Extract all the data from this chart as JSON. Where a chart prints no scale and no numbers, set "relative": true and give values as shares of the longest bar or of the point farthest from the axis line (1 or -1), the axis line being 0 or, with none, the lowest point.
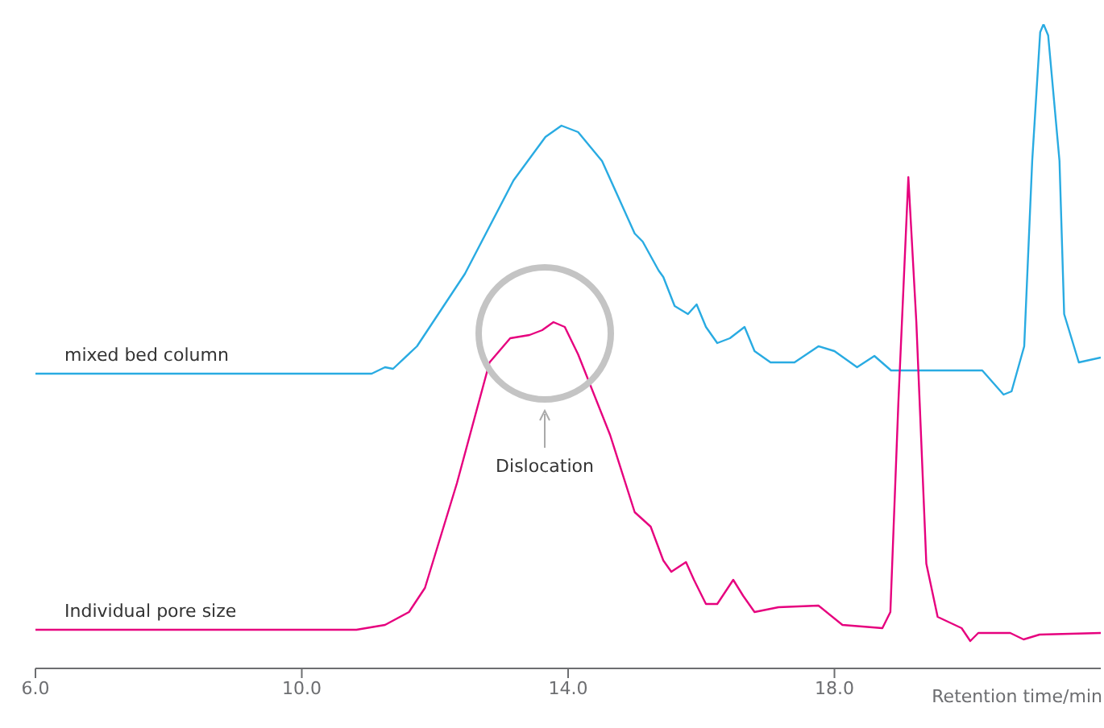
{
  "chart_data": {
    "type": "line",
    "relative": true,
    "xlabel": "Retention time/min",
    "xlim": [
      6,
      22
    ],
    "xticks": [
      {
        "value": 6,
        "label": "6.0"
      },
      {
        "value": 10,
        "label": "10.0"
      },
      {
        "value": 14,
        "label": "14.0"
      },
      {
        "value": 18,
        "label": "18.0"
      }
    ],
    "marker": "none",
    "line_style": "solid",
    "series": [
      {
        "name": "mixed bed column",
        "color": "#29abe2",
        "x": [
          6.0,
          11.05,
          11.25,
          11.37,
          11.73,
          12.45,
          13.18,
          13.66,
          13.9,
          14.15,
          14.51,
          15.0,
          15.12,
          15.36,
          15.43,
          15.6,
          15.8,
          15.93,
          16.07,
          16.24,
          16.43,
          16.65,
          16.8,
          17.04,
          17.4,
          17.76,
          18.0,
          18.34,
          18.6,
          18.85,
          20.22,
          20.54,
          20.66,
          20.85,
          20.97,
          21.09,
          21.14,
          21.21,
          21.38,
          21.45,
          21.67,
          22.0
        ],
        "values": [
          0.4575,
          0.4575,
          0.4675,
          0.465,
          0.5,
          0.6125,
          0.7575,
          0.825,
          0.8425,
          0.8325,
          0.7875,
          0.675,
          0.6625,
          0.6175,
          0.6075,
          0.5625,
          0.55,
          0.565,
          0.53,
          0.505,
          0.5125,
          0.53,
          0.4925,
          0.475,
          0.475,
          0.5,
          0.4925,
          0.4675,
          0.485,
          0.4625,
          0.4625,
          0.425,
          0.43,
          0.5,
          0.7875,
          0.9875,
          1.0,
          0.9825,
          0.7875,
          0.55,
          0.475,
          0.4825
        ]
      },
      {
        "name": "Individual pore size",
        "color": "#e6007e",
        "x": [
          6.0,
          10.82,
          11.25,
          11.61,
          11.85,
          12.33,
          12.82,
          13.13,
          13.42,
          13.61,
          13.78,
          13.95,
          14.15,
          14.63,
          15.0,
          15.24,
          15.43,
          15.55,
          15.77,
          15.89,
          16.07,
          16.24,
          16.48,
          16.63,
          16.8,
          17.16,
          17.76,
          18.12,
          18.72,
          18.84,
          18.96,
          19.11,
          19.23,
          19.38,
          19.55,
          19.91,
          20.04,
          20.16,
          20.64,
          20.84,
          21.08,
          22.0
        ],
        "values": [
          0.06,
          0.06,
          0.0675,
          0.0875,
          0.125,
          0.2875,
          0.475,
          0.5125,
          0.5175,
          0.525,
          0.5375,
          0.53,
          0.4875,
          0.3625,
          0.2425,
          0.22,
          0.1675,
          0.15,
          0.165,
          0.1375,
          0.1,
          0.1,
          0.1375,
          0.1125,
          0.0875,
          0.095,
          0.0975,
          0.0675,
          0.0625,
          0.0875,
          0.4125,
          0.7625,
          0.5375,
          0.1625,
          0.08,
          0.0625,
          0.0425,
          0.055,
          0.055,
          0.045,
          0.0525,
          0.055
        ]
      }
    ],
    "annotations": [
      "Dislocation"
    ]
  }
}
